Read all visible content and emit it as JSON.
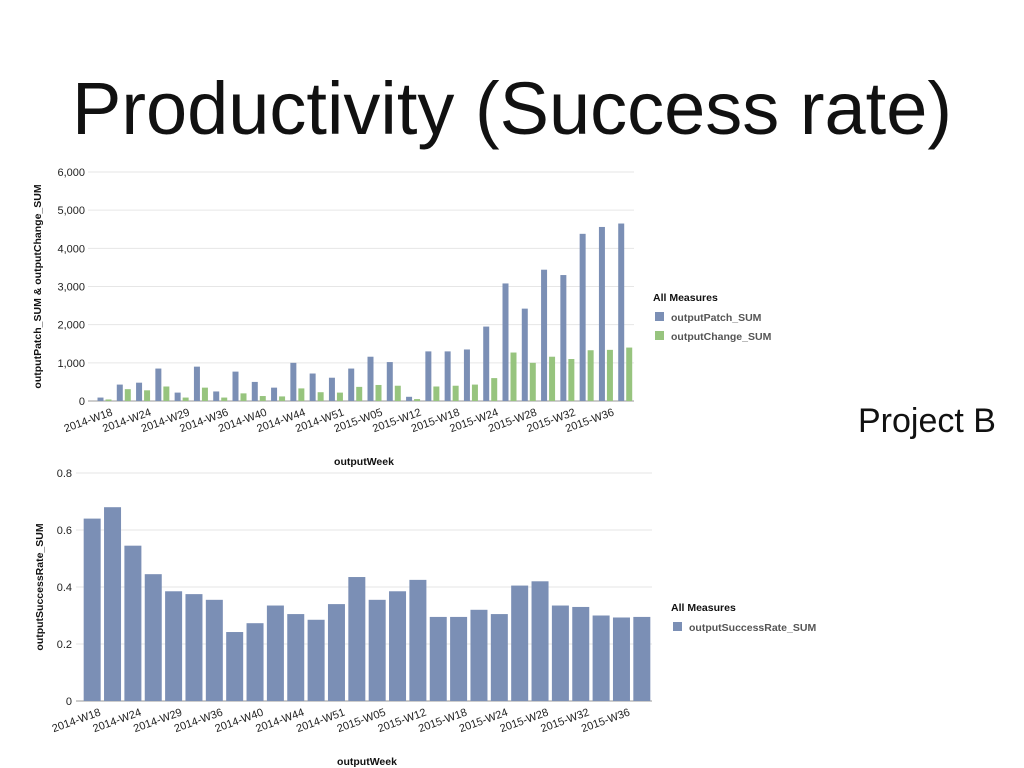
{
  "slide": {
    "title": "Productivity (Success rate)",
    "project_label": "Project B"
  },
  "colors": {
    "patch": "#7b8fb5",
    "change": "#97c47e",
    "success": "#7b8fb5",
    "grid": "#e6e6e6",
    "axis": "#999999"
  },
  "chart_data": [
    {
      "type": "bar",
      "xlabel": "outputWeek",
      "ylabel": "outputPatch_SUM & outputChange_SUM",
      "ylim": [
        0,
        6000
      ],
      "yticks": [
        0,
        1000,
        2000,
        3000,
        4000,
        5000,
        6000
      ],
      "ytick_labels": [
        "0",
        "1,000",
        "2,000",
        "3,000",
        "4,000",
        "5,000",
        "6,000"
      ],
      "grid": true,
      "legend_placement": "right",
      "legend_title": "All Measures",
      "xtick_labels": [
        "2014-W18",
        "2014-W24",
        "2014-W29",
        "2014-W36",
        "2014-W40",
        "2014-W44",
        "2014-W51",
        "2015-W05",
        "2015-W12",
        "2015-W18",
        "2015-W24",
        "2015-W28",
        "2015-W32",
        "2015-W36"
      ],
      "series": [
        {
          "name": "outputPatch_SUM",
          "values": [
            90,
            430,
            480,
            850,
            220,
            900,
            250,
            770,
            500,
            350,
            1000,
            720,
            610,
            850,
            1160,
            1020,
            110,
            1300,
            1300,
            1350,
            1950,
            3080,
            2420,
            3440,
            3300,
            4380,
            4560,
            4650
          ]
        },
        {
          "name": "outputChange_SUM",
          "values": [
            40,
            310,
            280,
            380,
            90,
            350,
            90,
            200,
            130,
            120,
            330,
            230,
            220,
            370,
            420,
            400,
            50,
            380,
            400,
            430,
            600,
            1270,
            1000,
            1160,
            1100,
            1330,
            1340,
            1400
          ]
        }
      ]
    },
    {
      "type": "bar",
      "xlabel": "outputWeek",
      "ylabel": "outputSuccessRate_SUM",
      "ylim": [
        0,
        0.8
      ],
      "yticks": [
        0,
        0.2,
        0.4,
        0.6,
        0.8
      ],
      "ytick_labels": [
        "0",
        "0.2",
        "0.4",
        "0.6",
        "0.8"
      ],
      "grid": true,
      "legend_placement": "right",
      "legend_title": "All Measures",
      "xtick_labels": [
        "2014-W18",
        "2014-W24",
        "2014-W29",
        "2014-W36",
        "2014-W40",
        "2014-W44",
        "2014-W51",
        "2015-W05",
        "2015-W12",
        "2015-W18",
        "2015-W24",
        "2015-W28",
        "2015-W32",
        "2015-W36"
      ],
      "series": [
        {
          "name": "outputSuccessRate_SUM",
          "values": [
            0.64,
            0.68,
            0.545,
            0.445,
            0.385,
            0.375,
            0.355,
            0.242,
            0.273,
            0.335,
            0.305,
            0.285,
            0.34,
            0.435,
            0.355,
            0.385,
            0.425,
            0.295,
            0.295,
            0.32,
            0.305,
            0.405,
            0.42,
            0.335,
            0.33,
            0.3,
            0.293,
            0.295
          ]
        }
      ]
    }
  ]
}
